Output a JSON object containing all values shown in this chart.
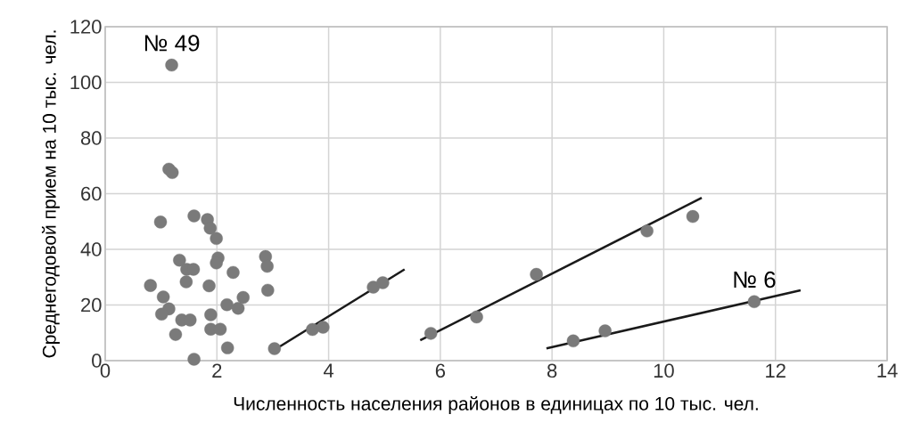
{
  "chart_data": {
    "type": "scatter",
    "xlabel": "Численность населения районов в единицах по 10 тыс. чел.",
    "ylabel": "Среднегодовой прием на 10 тыс. чел.",
    "xlim": [
      0,
      14
    ],
    "ylim": [
      0,
      120
    ],
    "xticks": [
      0,
      2,
      4,
      6,
      8,
      10,
      12,
      14
    ],
    "yticks": [
      0,
      20,
      40,
      60,
      80,
      100,
      120
    ],
    "grid": true,
    "marker": "circle",
    "annotations": [
      {
        "text": "№ 49",
        "x": 1.19,
        "y": 106.2
      },
      {
        "text": "№ 6",
        "x": 11.62,
        "y": 21.2
      }
    ],
    "series": [
      {
        "color": "#7a7a7a",
        "x": [
          1.19,
          1.14,
          1.2,
          0.99,
          1.59,
          1.83,
          1.88,
          1.99,
          1.33,
          1.46,
          1.58,
          2.02,
          1.99,
          2.29,
          2.87,
          2.9,
          0.81,
          1.45,
          1.86,
          2.91,
          1.04,
          2.47,
          2.18,
          2.38,
          1.14,
          1.01,
          1.37,
          1.52,
          1.89,
          1.89,
          2.06,
          1.26,
          2.19,
          1.59,
          3.03,
          3.71,
          3.9,
          4.8,
          4.97,
          5.83,
          6.65,
          7.72,
          9.7,
          10.52,
          8.38,
          8.95,
          11.62
        ],
        "values": [
          106.2,
          68.8,
          67.6,
          49.8,
          52.0,
          50.7,
          47.6,
          43.9,
          36.1,
          32.8,
          32.8,
          36.9,
          35.1,
          31.7,
          37.4,
          33.9,
          27.0,
          28.3,
          26.9,
          25.3,
          22.9,
          22.7,
          20.1,
          18.8,
          18.6,
          16.7,
          14.6,
          14.6,
          16.5,
          11.3,
          11.3,
          9.4,
          4.6,
          0.5,
          4.3,
          11.2,
          12.0,
          26.4,
          28.0,
          9.8,
          15.7,
          31.0,
          46.6,
          51.8,
          7.1,
          10.7,
          21.2
        ]
      },
      {
        "type": "line",
        "color": "#1a1a1a",
        "marker": "none",
        "x": [
          3.04,
          5.36
        ],
        "values": [
          4.0,
          32.8
        ]
      },
      {
        "type": "line",
        "color": "#1a1a1a",
        "marker": "none",
        "x": [
          5.64,
          10.68
        ],
        "values": [
          7.3,
          58.5
        ]
      },
      {
        "type": "line",
        "color": "#1a1a1a",
        "marker": "none",
        "x": [
          7.9,
          12.45
        ],
        "values": [
          4.4,
          25.3
        ]
      }
    ]
  }
}
